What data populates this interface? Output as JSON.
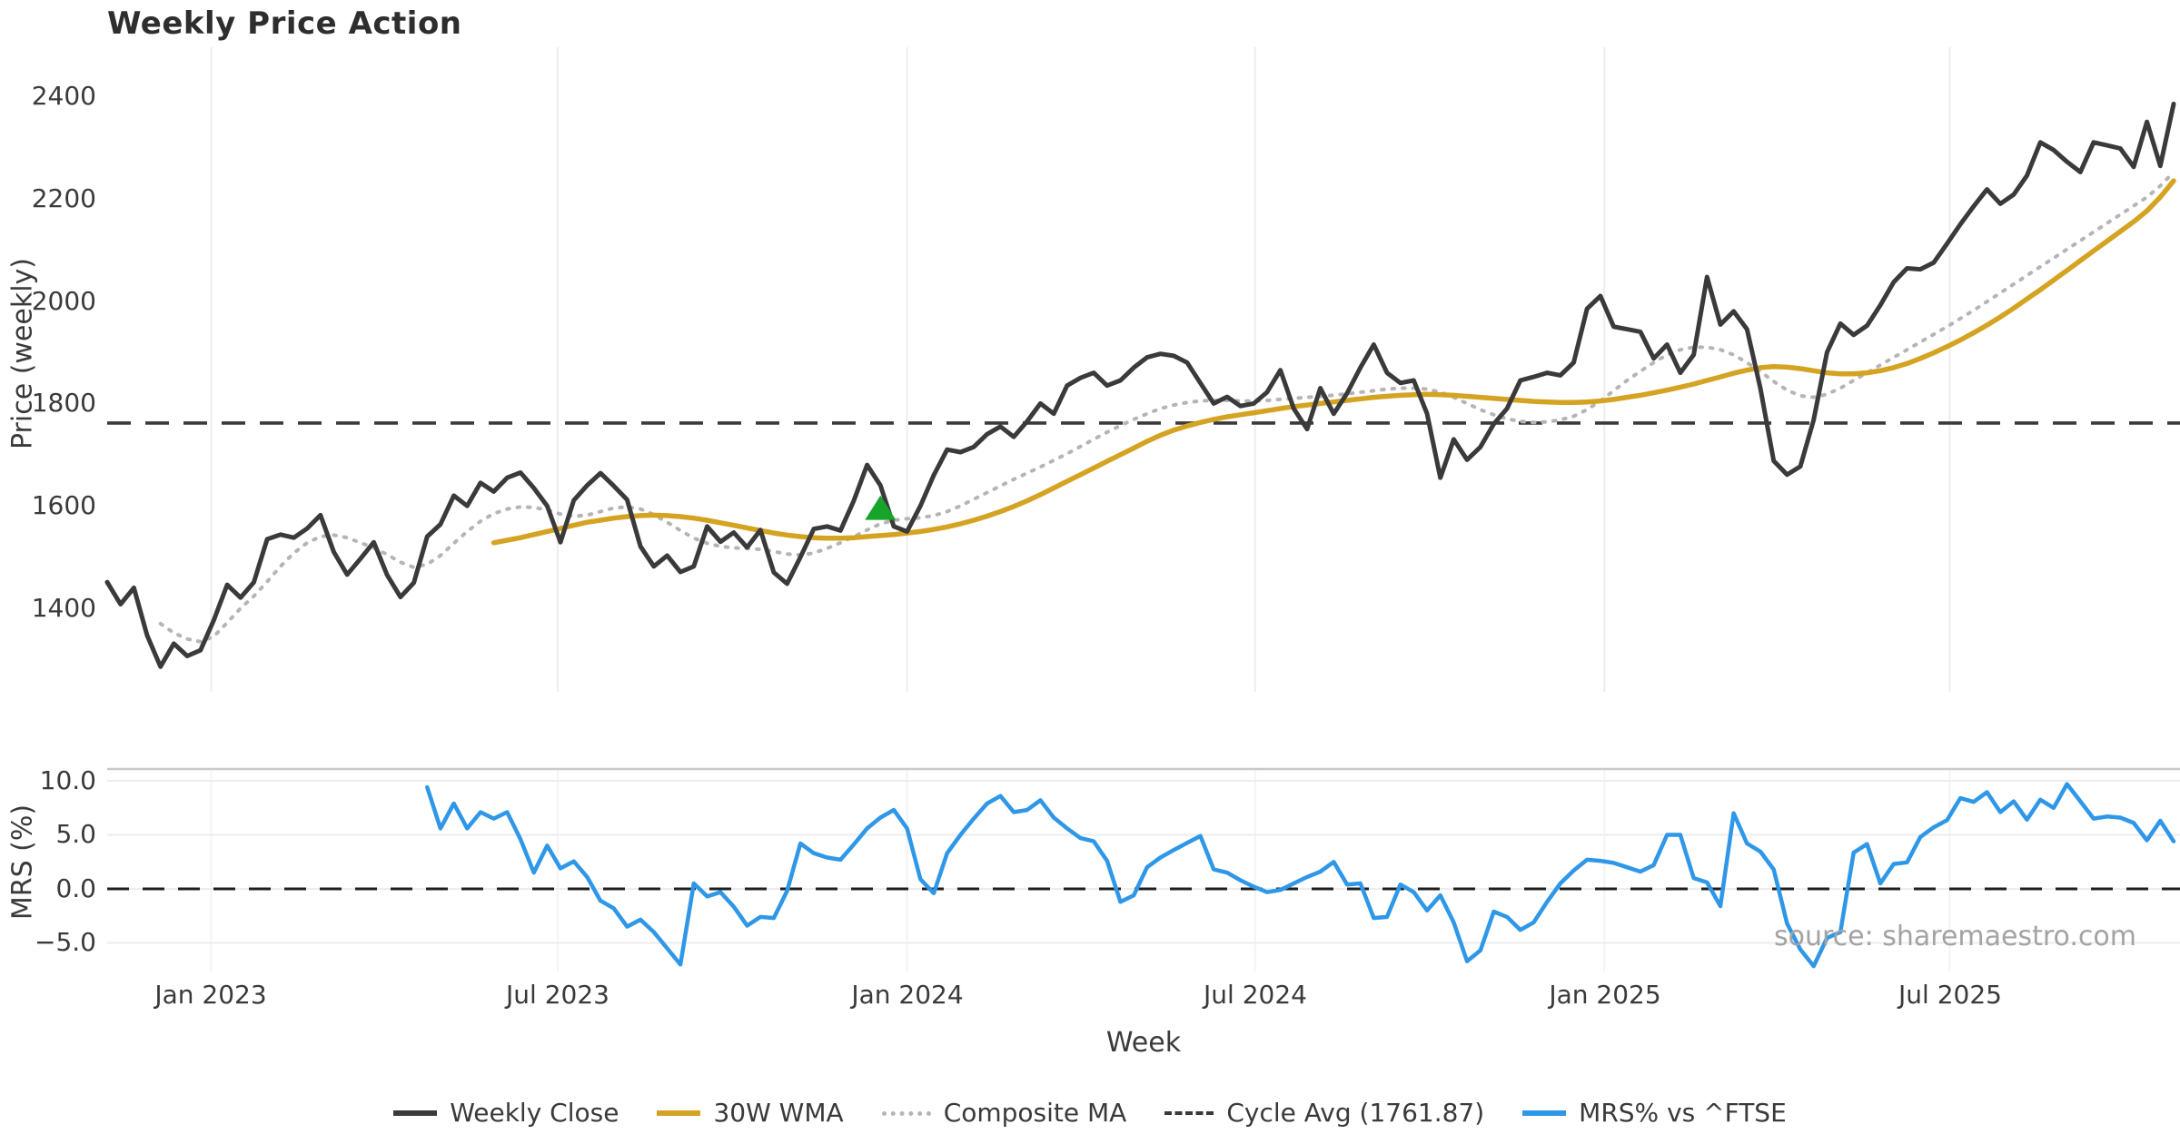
{
  "title": "Weekly Price Action",
  "source_text": "source: sharemaestro.com",
  "legend": [
    {
      "label": "Weekly Close",
      "swatch": "solid-dark",
      "color": "#3a3a3a"
    },
    {
      "label": "30W WMA",
      "swatch": "solid-gold",
      "color": "#d5a322"
    },
    {
      "label": "Composite MA",
      "swatch": "dotted-gray",
      "color": "#b5b5b5"
    },
    {
      "label": "Cycle Avg (1761.87)",
      "swatch": "dashed-dark",
      "color": "#3a3a3a"
    },
    {
      "label": "MRS% vs ^FTSE",
      "swatch": "solid-blue",
      "color": "#2f97e8"
    }
  ],
  "x_axis": {
    "label": "Week",
    "ticks": [
      "Jan 2023",
      "Jul 2023",
      "Jan 2024",
      "Jul 2024",
      "Jan 2025",
      "Jul 2025"
    ]
  },
  "chart_data": [
    {
      "type": "line",
      "panel": "price",
      "ylabel": "Price (weekly)",
      "y_tick_labels": [
        "2400",
        "2200",
        "2000",
        "1800",
        "1600",
        "1400"
      ],
      "yticks": [
        2400,
        2200,
        2000,
        1800,
        1600,
        1400
      ],
      "ylim": [
        1270,
        2480
      ],
      "x_tick_labels": [
        "Jan 2023",
        "Jul 2023",
        "Jan 2024",
        "Jul 2024",
        "Jan 2025",
        "Jul 2025"
      ],
      "x_tick_weeks": [
        7.8,
        33.8,
        60.0,
        86.1,
        112.3,
        138.2
      ],
      "weeks_total": 156,
      "x_start": "Nov 2022",
      "x_end": "Nov 2025",
      "cycle_avg": 1761.87,
      "buy_marker": {
        "week": 58,
        "price": 1594,
        "shape": "triangle-up",
        "color": "#17a42a"
      },
      "grid": "vertical-light",
      "series": [
        {
          "name": "Weekly Close",
          "color": "#3a3a3a",
          "style": "solid",
          "values": [
            1451,
            1408,
            1440,
            1347,
            1286,
            1331,
            1307,
            1318,
            1377,
            1446,
            1421,
            1451,
            1535,
            1544,
            1538,
            1556,
            1582,
            1510,
            1466,
            1497,
            1529,
            1465,
            1422,
            1450,
            1540,
            1564,
            1620,
            1600,
            1645,
            1628,
            1655,
            1665,
            1635,
            1600,
            1529,
            1611,
            1640,
            1664,
            1639,
            1612,
            1521,
            1482,
            1503,
            1471,
            1482,
            1560,
            1530,
            1548,
            1519,
            1553,
            1470,
            1448,
            1500,
            1555,
            1560,
            1552,
            1610,
            1680,
            1640,
            1560,
            1550,
            1600,
            1660,
            1710,
            1705,
            1715,
            1740,
            1755,
            1735,
            1765,
            1800,
            1780,
            1835,
            1850,
            1860,
            1835,
            1845,
            1870,
            1890,
            1897,
            1893,
            1880,
            1840,
            1800,
            1813,
            1795,
            1800,
            1822,
            1865,
            1790,
            1750,
            1830,
            1780,
            1820,
            1870,
            1915,
            1860,
            1840,
            1845,
            1780,
            1655,
            1730,
            1690,
            1715,
            1760,
            1790,
            1845,
            1852,
            1860,
            1855,
            1880,
            1985,
            2010,
            1950,
            1945,
            1940,
            1888,
            1915,
            1860,
            1895,
            2047,
            1954,
            1980,
            1945,
            1830,
            1688,
            1661,
            1677,
            1768,
            1900,
            1956,
            1934,
            1952,
            1992,
            2037,
            2064,
            2062,
            2075,
            2112,
            2150,
            2185,
            2218,
            2190,
            2208,
            2245,
            2310,
            2295,
            2272,
            2252,
            2310,
            2304,
            2298,
            2262,
            2350,
            2264,
            2385
          ]
        },
        {
          "name": "30W WMA",
          "color": "#d5a322",
          "style": "solid",
          "values": [
            null,
            null,
            null,
            null,
            null,
            null,
            null,
            null,
            null,
            null,
            null,
            null,
            null,
            null,
            null,
            null,
            null,
            null,
            null,
            null,
            null,
            null,
            null,
            null,
            null,
            null,
            null,
            null,
            null,
            1528,
            1533,
            1538,
            1544,
            1550,
            1556,
            1562,
            1568,
            1572,
            1576,
            1579,
            1581,
            1582,
            1581,
            1579,
            1576,
            1572,
            1567,
            1562,
            1557,
            1552,
            1547,
            1543,
            1540,
            1538,
            1537,
            1537,
            1538,
            1540,
            1542,
            1544,
            1547,
            1550,
            1554,
            1559,
            1565,
            1572,
            1580,
            1589,
            1599,
            1610,
            1622,
            1635,
            1648,
            1661,
            1674,
            1687,
            1700,
            1713,
            1726,
            1738,
            1748,
            1756,
            1763,
            1769,
            1774,
            1778,
            1782,
            1786,
            1790,
            1794,
            1797,
            1800,
            1803,
            1806,
            1809,
            1812,
            1814,
            1816,
            1817,
            1818,
            1817,
            1816,
            1814,
            1812,
            1810,
            1808,
            1806,
            1804,
            1803,
            1802,
            1802,
            1803,
            1805,
            1808,
            1812,
            1816,
            1821,
            1826,
            1832,
            1838,
            1845,
            1852,
            1859,
            1865,
            1870,
            1872,
            1871,
            1868,
            1864,
            1860,
            1858,
            1858,
            1860,
            1864,
            1870,
            1878,
            1888,
            1899,
            1911,
            1924,
            1938,
            1953,
            1969,
            1986,
            2004,
            2022,
            2041,
            2060,
            2079,
            2098,
            2117,
            2136,
            2155,
            2176,
            2203,
            2235
          ]
        },
        {
          "name": "Composite MA",
          "color": "#b5b5b5",
          "style": "dotted",
          "values": [
            null,
            null,
            null,
            null,
            1370,
            1352,
            1340,
            1335,
            1345,
            1372,
            1400,
            1424,
            1452,
            1482,
            1508,
            1528,
            1540,
            1543,
            1538,
            1528,
            1518,
            1505,
            1490,
            1480,
            1486,
            1503,
            1527,
            1550,
            1570,
            1585,
            1594,
            1598,
            1597,
            1592,
            1584,
            1580,
            1582,
            1589,
            1596,
            1598,
            1594,
            1583,
            1568,
            1552,
            1537,
            1527,
            1521,
            1518,
            1517,
            1515,
            1511,
            1506,
            1504,
            1508,
            1517,
            1528,
            1540,
            1553,
            1565,
            1572,
            1575,
            1577,
            1581,
            1589,
            1600,
            1613,
            1626,
            1639,
            1652,
            1664,
            1676,
            1689,
            1702,
            1716,
            1730,
            1744,
            1757,
            1769,
            1780,
            1790,
            1797,
            1802,
            1805,
            1806,
            1806,
            1805,
            1805,
            1806,
            1808,
            1810,
            1812,
            1814,
            1816,
            1819,
            1822,
            1825,
            1828,
            1830,
            1830,
            1828,
            1822,
            1812,
            1800,
            1788,
            1778,
            1770,
            1765,
            1763,
            1764,
            1768,
            1775,
            1788,
            1805,
            1825,
            1845,
            1863,
            1880,
            1895,
            1905,
            1910,
            1910,
            1905,
            1895,
            1880,
            1862,
            1843,
            1826,
            1815,
            1812,
            1818,
            1830,
            1845,
            1860,
            1875,
            1890,
            1905,
            1920,
            1935,
            1950,
            1966,
            1982,
            1999,
            2016,
            2033,
            2050,
            2067,
            2084,
            2101,
            2118,
            2135,
            2152,
            2169,
            2186,
            2203,
            2225,
            2252
          ]
        }
      ]
    },
    {
      "type": "line",
      "panel": "mrs",
      "ylabel": "MRS (%)",
      "y_tick_labels": [
        "10.0",
        "5.0",
        "0.0",
        "−5.0"
      ],
      "yticks": [
        10,
        5,
        0,
        -5
      ],
      "ylim": [
        -8.5,
        11.2
      ],
      "zero_line_dashed": true,
      "series": [
        {
          "name": "MRS% vs ^FTSE",
          "color": "#2f97e8",
          "style": "solid",
          "values": [
            null,
            null,
            null,
            null,
            null,
            null,
            null,
            null,
            null,
            null,
            null,
            null,
            null,
            null,
            null,
            null,
            null,
            null,
            null,
            null,
            null,
            null,
            null,
            null,
            9.4,
            5.6,
            7.9,
            5.6,
            7.1,
            6.5,
            7.1,
            4.6,
            1.5,
            4.0,
            1.9,
            2.55,
            1.1,
            -1.1,
            -1.8,
            -3.5,
            -2.85,
            -4.0,
            -5.5,
            -7.0,
            0.5,
            -0.7,
            -0.3,
            -1.65,
            -3.4,
            -2.6,
            -2.7,
            -0.2,
            4.2,
            3.3,
            2.9,
            2.7,
            4.1,
            5.6,
            6.6,
            7.3,
            5.6,
            0.9,
            -0.4,
            3.3,
            5.0,
            6.5,
            7.9,
            8.6,
            7.1,
            7.3,
            8.2,
            6.6,
            5.6,
            4.7,
            4.4,
            2.6,
            -1.2,
            -0.6,
            2.0,
            2.9,
            3.6,
            4.25,
            4.9,
            1.8,
            1.5,
            0.8,
            0.2,
            -0.3,
            -0.1,
            0.5,
            1.1,
            1.6,
            2.5,
            0.4,
            0.5,
            -2.7,
            -2.6,
            0.4,
            -0.3,
            -2.0,
            -0.6,
            -3.1,
            -6.7,
            -5.7,
            -2.1,
            -2.6,
            -3.8,
            -3.1,
            -1.2,
            0.5,
            1.7,
            2.7,
            2.6,
            2.4,
            2.0,
            1.6,
            2.2,
            5.0,
            5.0,
            1.0,
            0.6,
            -1.6,
            7.0,
            4.2,
            3.45,
            1.8,
            -3.2,
            -5.6,
            -7.15,
            -4.55,
            -4.0,
            3.35,
            4.15,
            0.5,
            2.3,
            2.45,
            4.8,
            5.7,
            6.35,
            8.4,
            8.05,
            8.95,
            7.1,
            8.1,
            6.4,
            8.25,
            7.5,
            9.7,
            8.1,
            6.5,
            6.7,
            6.6,
            6.1,
            4.5,
            6.3,
            4.4
          ]
        }
      ]
    }
  ],
  "colors": {
    "weekly_close": "#3a3a3a",
    "wma": "#d5a322",
    "composite": "#b5b5b5",
    "cycle_avg": "#3a3a3a",
    "mrs": "#2f97e8",
    "marker_green": "#17a42a",
    "grid": "#ededed",
    "spine": "#c9c9c9",
    "source": "#a3a3a3"
  }
}
